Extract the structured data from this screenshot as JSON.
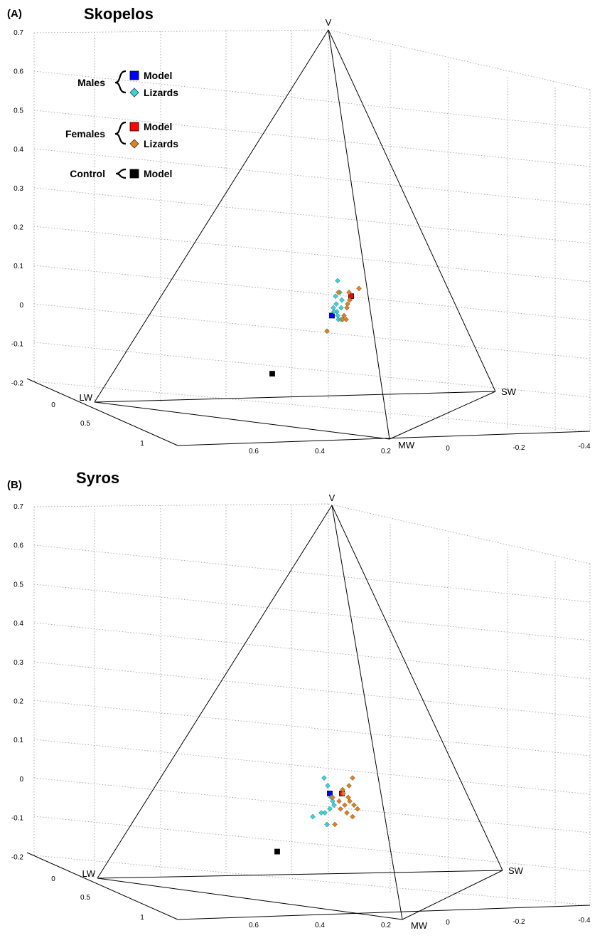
{
  "chart_data": [
    {
      "type": "scatter",
      "panel_label": "(A)",
      "title": "Skopelos",
      "z_ticks": [
        "0.7",
        "0.6",
        "0.5",
        "0.4",
        "0.3",
        "0.2",
        "0.1",
        "0",
        "-0.1",
        "-0.2"
      ],
      "lw_axis_ticks": [
        "0",
        "0.5",
        "1"
      ],
      "mw_axis_ticks": [
        "0.6",
        "0.4",
        "0.2"
      ],
      "sw_axis_ticks": [
        "0",
        "-0.2",
        "-0.4"
      ],
      "vertices": {
        "V": "V",
        "LW": "LW",
        "MW": "MW",
        "SW": "SW"
      },
      "legend": {
        "groups": [
          {
            "label": "Males",
            "entries": [
              {
                "label": "Model",
                "marker": "square",
                "color": "#0000ff"
              },
              {
                "label": "Lizards",
                "marker": "diamond",
                "color": "#33d6dd"
              }
            ]
          },
          {
            "label": "Females",
            "entries": [
              {
                "label": "Model",
                "marker": "square",
                "color": "#ff0000"
              },
              {
                "label": "Lizards",
                "marker": "diamond",
                "color": "#e0801e"
              }
            ]
          },
          {
            "label": "Control",
            "entries": [
              {
                "label": "Model",
                "marker": "square",
                "color": "#000000"
              }
            ]
          }
        ]
      },
      "series": [
        {
          "name": "Males Model",
          "marker": "square",
          "color": "#0000ff",
          "z": [
            -0.03
          ]
        },
        {
          "name": "Males Lizards",
          "marker": "diamond",
          "color": "#33d6dd",
          "z": [
            0.06,
            0.03,
            0.02,
            0.0,
            -0.01,
            -0.02,
            -0.01,
            -0.03,
            -0.04,
            -0.02,
            -0.04,
            0.01
          ]
        },
        {
          "name": "Females Model",
          "marker": "square",
          "color": "#ff0000",
          "z": [
            0.02
          ]
        },
        {
          "name": "Females Lizards",
          "marker": "diamond",
          "color": "#e0801e",
          "z": [
            0.04,
            0.03,
            0.01,
            0.0,
            -0.01,
            -0.03,
            -0.04,
            -0.07,
            0.03,
            -0.04
          ]
        },
        {
          "name": "Control Model",
          "marker": "square",
          "color": "#000000",
          "z": [
            -0.18
          ]
        }
      ]
    },
    {
      "type": "scatter",
      "panel_label": "(B)",
      "title": "Syros",
      "z_ticks": [
        "0.7",
        "0.6",
        "0.5",
        "0.4",
        "0.3",
        "0.2",
        "0.1",
        "0",
        "-0.1",
        "-0.2"
      ],
      "lw_axis_ticks": [
        "0",
        "0.5",
        "1"
      ],
      "mw_axis_ticks": [
        "0.6",
        "0.4",
        "0.2"
      ],
      "sw_axis_ticks": [
        "0",
        "-0.2",
        "-0.4"
      ],
      "vertices": {
        "V": "V",
        "LW": "LW",
        "MW": "MW",
        "SW": "SW"
      },
      "series": [
        {
          "name": "Males Model",
          "marker": "square",
          "color": "#0000ff",
          "z": [
            -0.04
          ]
        },
        {
          "name": "Males Lizards",
          "marker": "diamond",
          "color": "#33d6dd",
          "z": [
            0.0,
            -0.02,
            -0.05,
            -0.07,
            -0.08,
            -0.09,
            -0.09,
            -0.1,
            -0.12,
            -0.06
          ]
        },
        {
          "name": "Females Model",
          "marker": "square",
          "color": "#ff0000",
          "z": [
            -0.04
          ]
        },
        {
          "name": "Females Lizards",
          "marker": "diamond",
          "color": "#e0801e",
          "z": [
            0.0,
            -0.02,
            -0.04,
            -0.05,
            -0.06,
            -0.07,
            -0.07,
            -0.08,
            -0.08,
            -0.09,
            -0.1,
            -0.12,
            -0.03,
            -0.05,
            -0.06
          ]
        },
        {
          "name": "Control Model",
          "marker": "square",
          "color": "#000000",
          "z": [
            -0.19
          ]
        }
      ]
    }
  ]
}
